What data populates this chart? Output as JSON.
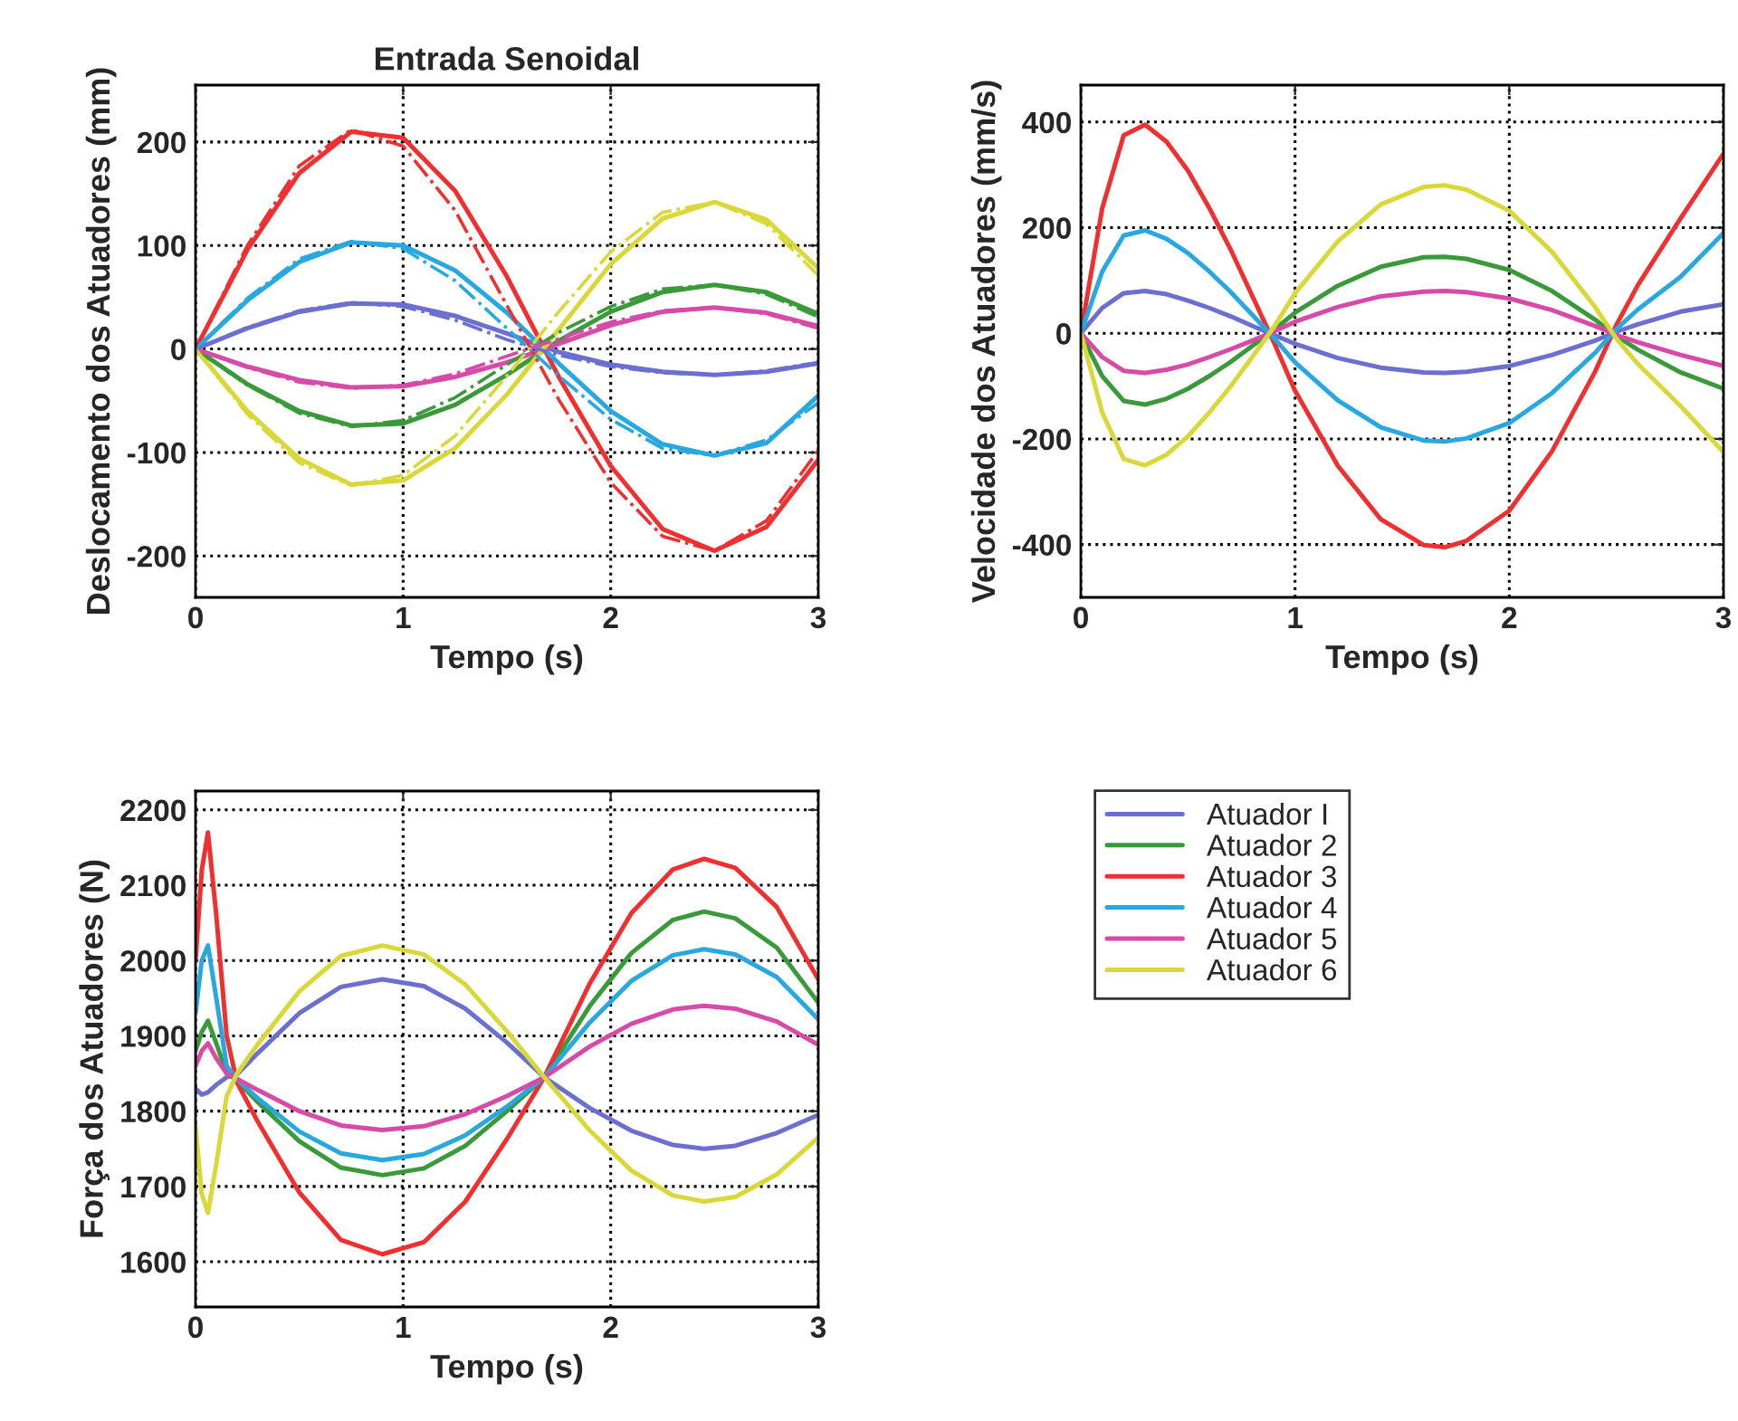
{
  "chart_data": [
    {
      "type": "line",
      "title": "Entrada Senoidal",
      "xlabel": "Tempo (s)",
      "ylabel": "Deslocamento dos Atuadores (mm)",
      "x": [
        0,
        0.25,
        0.5,
        0.75,
        1.0,
        1.25,
        1.5,
        1.75,
        2.0,
        2.25,
        2.5,
        2.75,
        3.0
      ],
      "xlim": [
        0,
        3
      ],
      "xticks": [
        0,
        1,
        2,
        3
      ],
      "ylim": [
        -240,
        255
      ],
      "yticks": [
        -200,
        -100,
        0,
        100,
        200
      ],
      "grid": true,
      "line_style": "solid",
      "series": [
        {
          "color": "#6a6fd0",
          "values": [
            0,
            20,
            36,
            44,
            43,
            32,
            15,
            -3,
            -15,
            -22,
            -25,
            -22,
            -14
          ]
        },
        {
          "color": "#3a9a3a",
          "values": [
            0,
            -34,
            -60,
            -74,
            -72,
            -54,
            -25,
            8,
            36,
            55,
            62,
            55,
            34
          ]
        },
        {
          "color": "#f03030",
          "values": [
            0,
            96,
            170,
            210,
            204,
            153,
            70,
            -27,
            -113,
            -174,
            -195,
            -172,
            -107
          ]
        },
        {
          "color": "#28a8e0",
          "values": [
            0,
            47,
            84,
            103,
            100,
            76,
            35,
            -14,
            -60,
            -92,
            -103,
            -91,
            -45
          ]
        },
        {
          "color": "#d84aa8",
          "values": [
            0,
            -17,
            -30,
            -37,
            -36,
            -27,
            -13,
            5,
            23,
            36,
            40,
            35,
            22
          ]
        },
        {
          "color": "#d8d838",
          "values": [
            0,
            -60,
            -106,
            -131,
            -127,
            -96,
            -44,
            19,
            82,
            126,
            142,
            125,
            78
          ]
        },
        {
          "color": "#6a6fd0",
          "line_style": "dashdot",
          "values": [
            0,
            21,
            37,
            45,
            41,
            28,
            9,
            -6,
            -17,
            -23,
            -25,
            -21,
            -13
          ]
        },
        {
          "color": "#3a9a3a",
          "line_style": "dashdot",
          "values": [
            0,
            -35,
            -62,
            -75,
            -69,
            -47,
            -15,
            16,
            41,
            58,
            62,
            53,
            31
          ]
        },
        {
          "color": "#f03030",
          "line_style": "dashdot",
          "values": [
            0,
            100,
            177,
            212,
            196,
            134,
            42,
            -49,
            -129,
            -181,
            -195,
            -166,
            -98
          ]
        },
        {
          "color": "#28a8e0",
          "line_style": "dashdot",
          "values": [
            0,
            49,
            87,
            104,
            97,
            66,
            20,
            -26,
            -68,
            -96,
            -103,
            -88,
            -52
          ]
        },
        {
          "color": "#d84aa8",
          "line_style": "dashdot",
          "values": [
            0,
            -18,
            -32,
            -38,
            -35,
            -24,
            -7,
            10,
            26,
            37,
            40,
            34,
            20
          ]
        },
        {
          "color": "#d8d838",
          "line_style": "dashdot",
          "values": [
            0,
            -63,
            -110,
            -132,
            -122,
            -84,
            -26,
            36,
            94,
            132,
            142,
            121,
            71
          ]
        }
      ]
    },
    {
      "type": "line",
      "xlabel": "Tempo (s)",
      "ylabel": "Velocidade dos Atuadores (mm/s)",
      "x": [
        0,
        0.1,
        0.2,
        0.3,
        0.4,
        0.5,
        0.6,
        0.7,
        0.8,
        0.9,
        1.0,
        1.2,
        1.4,
        1.6,
        1.7,
        1.8,
        2.0,
        2.2,
        2.4,
        2.5,
        2.6,
        2.8,
        3.0
      ],
      "xlim": [
        0,
        3
      ],
      "xticks": [
        0,
        1,
        2,
        3
      ],
      "ylim": [
        -500,
        470
      ],
      "yticks": [
        -400,
        -200,
        0,
        200,
        400
      ],
      "grid": true,
      "line_style": "solid",
      "series": [
        {
          "color": "#6a6fd0",
          "values": [
            0,
            48,
            76,
            80,
            74,
            62,
            48,
            32,
            14,
            -3,
            -20,
            -47,
            -65,
            -74,
            -75,
            -73,
            -62,
            -41,
            -14,
            3,
            17,
            41,
            55
          ]
        },
        {
          "color": "#3a9a3a",
          "values": [
            0,
            -81,
            -128,
            -135,
            -124,
            -105,
            -81,
            -54,
            -24,
            6,
            39,
            90,
            126,
            144,
            145,
            141,
            120,
            80,
            26,
            -5,
            -31,
            -74,
            -105
          ]
        },
        {
          "color": "#f03030",
          "values": [
            0,
            237,
            375,
            395,
            363,
            308,
            237,
            158,
            71,
            -16,
            -109,
            -251,
            -352,
            -401,
            -405,
            -393,
            -336,
            -223,
            -73,
            16,
            91,
            218,
            340
          ]
        },
        {
          "color": "#28a8e0",
          "values": [
            0,
            117,
            185,
            195,
            179,
            152,
            117,
            78,
            35,
            -8,
            -55,
            -127,
            -178,
            -203,
            -205,
            -199,
            -170,
            -113,
            -37,
            8,
            45,
            107,
            190
          ]
        },
        {
          "color": "#d84aa8",
          "values": [
            0,
            -45,
            -71,
            -75,
            -69,
            -59,
            -45,
            -30,
            -14,
            3,
            22,
            50,
            70,
            79,
            80,
            78,
            66,
            44,
            14,
            -3,
            -17,
            -41,
            -62
          ]
        },
        {
          "color": "#d8d838",
          "values": [
            0,
            -150,
            -238,
            -250,
            -230,
            -195,
            -150,
            -100,
            -45,
            11,
            76,
            174,
            244,
            277,
            280,
            272,
            232,
            154,
            50,
            -10,
            -58,
            -138,
            -225
          ]
        }
      ]
    },
    {
      "type": "line",
      "xlabel": "Tempo (s)",
      "ylabel": "Força dos Atuadores (N)",
      "x": [
        0,
        0.03,
        0.06,
        0.1,
        0.15,
        0.2,
        0.3,
        0.5,
        0.7,
        0.9,
        1.1,
        1.3,
        1.5,
        1.68,
        1.9,
        2.1,
        2.3,
        2.45,
        2.6,
        2.8,
        3.0
      ],
      "xlim": [
        0,
        3
      ],
      "xticks": [
        0,
        1,
        2,
        3
      ],
      "ylim": [
        1540,
        2225
      ],
      "yticks": [
        1600,
        1700,
        1800,
        1900,
        2000,
        2100,
        2200
      ],
      "grid": true,
      "legend": "right",
      "line_style": "solid",
      "series": [
        {
          "name": "Atuador I",
          "color": "#6a6fd0",
          "values": [
            1830,
            1822,
            1825,
            1835,
            1845,
            1849,
            1877,
            1930,
            1965,
            1975,
            1966,
            1936,
            1891,
            1845,
            1804,
            1774,
            1755,
            1750,
            1754,
            1771,
            1795
          ]
        },
        {
          "name": "Atuador 2",
          "color": "#3a9a3a",
          "values": [
            1880,
            1905,
            1920,
            1890,
            1850,
            1841,
            1812,
            1760,
            1725,
            1715,
            1724,
            1754,
            1800,
            1845,
            1940,
            2010,
            2054,
            2065,
            2056,
            2017,
            1944
          ]
        },
        {
          "name": "Atuador 3",
          "color": "#f03030",
          "values": [
            2000,
            2120,
            2170,
            2060,
            1900,
            1838,
            1786,
            1692,
            1629,
            1610,
            1626,
            1680,
            1763,
            1845,
            1970,
            2063,
            2121,
            2135,
            2123,
            2071,
            1975
          ]
        },
        {
          "name": "Atuador 4",
          "color": "#28a8e0",
          "values": [
            1930,
            2000,
            2020,
            1950,
            1860,
            1842,
            1817,
            1773,
            1744,
            1735,
            1743,
            1768,
            1806,
            1845,
            1918,
            1973,
            2007,
            2015,
            2008,
            1978,
            1922
          ]
        },
        {
          "name": "Atuador 5",
          "color": "#d84aa8",
          "values": [
            1860,
            1880,
            1890,
            1870,
            1850,
            1843,
            1828,
            1800,
            1781,
            1775,
            1780,
            1796,
            1820,
            1845,
            1886,
            1916,
            1935,
            1940,
            1936,
            1919,
            1888
          ]
        },
        {
          "name": "Atuador 6",
          "color": "#d8d838",
          "values": [
            1780,
            1690,
            1665,
            1730,
            1820,
            1850,
            1889,
            1959,
            2006,
            2020,
            2008,
            1968,
            1906,
            1845,
            1774,
            1721,
            1688,
            1680,
            1686,
            1716,
            1765
          ]
        }
      ]
    }
  ]
}
